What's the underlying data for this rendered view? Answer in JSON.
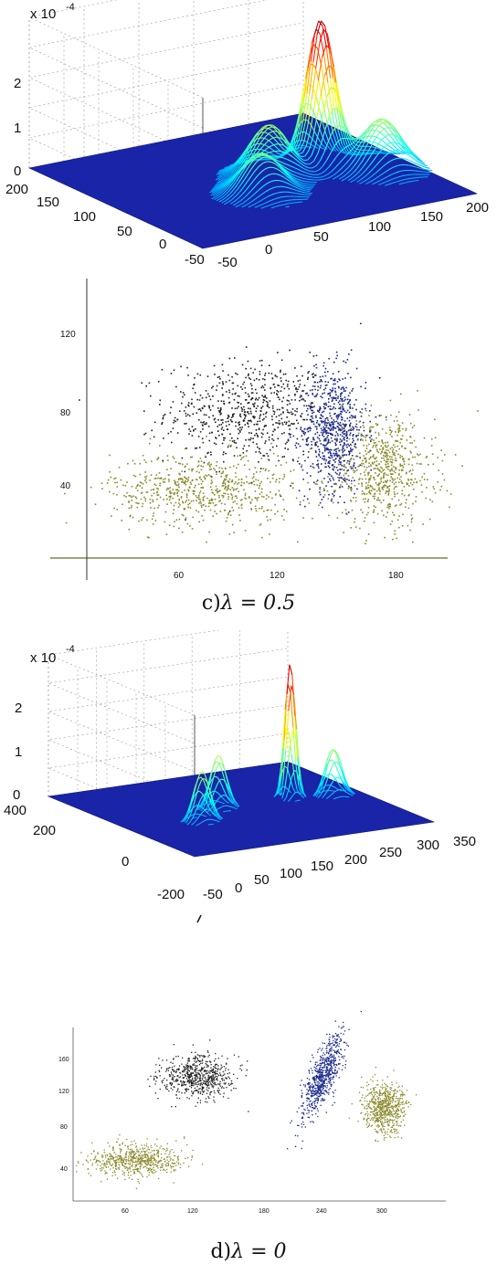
{
  "captions": {
    "c_prefix": "c)",
    "c_eq": "λ = 0.5",
    "d_prefix": "d)",
    "d_eq": "λ = 0"
  },
  "chart_data": [
    {
      "id": "surface-c",
      "type": "surface",
      "z_exponent_label": "x 10",
      "z_exponent_power": "-4",
      "z_ticks": [
        "0",
        "1",
        "2"
      ],
      "x_ticks": [
        "-50",
        "0",
        "50",
        "100",
        "150",
        "200"
      ],
      "y_ticks": [
        "-50",
        "0",
        "50",
        "100",
        "150",
        "200"
      ],
      "peaks": [
        {
          "x": 140,
          "y": 80,
          "z": 2.5
        },
        {
          "x": 90,
          "y": 75,
          "z": 0.9
        },
        {
          "x": 60,
          "y": 40,
          "z": 0.7
        },
        {
          "x": 170,
          "y": 40,
          "z": 0.9
        }
      ]
    },
    {
      "id": "scatter-c",
      "type": "scatter",
      "x_ticks": [
        "60",
        "120",
        "180"
      ],
      "y_ticks": [
        "40",
        "80",
        "120"
      ],
      "xlim": [
        -10,
        210
      ],
      "ylim": [
        0,
        150
      ],
      "clusters": [
        {
          "color": "#222222",
          "cx": 90,
          "cy": 80,
          "sx": 26,
          "sy": 14,
          "n": 700
        },
        {
          "color": "#1a2a8c",
          "cx": 140,
          "cy": 70,
          "sx": 10,
          "sy": 17,
          "n": 700
        },
        {
          "color": "#8c8a2c",
          "cx": 60,
          "cy": 38,
          "sx": 28,
          "sy": 10,
          "n": 650
        },
        {
          "color": "#8c8a2c",
          "cx": 170,
          "cy": 48,
          "sx": 16,
          "sy": 15,
          "n": 650
        }
      ]
    },
    {
      "id": "surface-d",
      "type": "surface",
      "z_exponent_label": "x 10",
      "z_exponent_power": "-4",
      "z_ticks": [
        "0",
        "1",
        "2"
      ],
      "x_ticks": [
        "-50",
        "0",
        "50",
        "100",
        "150",
        "200",
        "250",
        "300",
        "350"
      ],
      "y_ticks": [
        "-200",
        "0",
        "200",
        "400"
      ],
      "peaks": [
        {
          "x": 240,
          "y": 120,
          "z": 2.5
        },
        {
          "x": 120,
          "y": 120,
          "z": 1.0
        },
        {
          "x": 60,
          "y": 40,
          "z": 0.95
        },
        {
          "x": 300,
          "y": 90,
          "z": 0.9
        }
      ]
    },
    {
      "id": "scatter-d",
      "type": "scatter",
      "x_ticks": [
        "60",
        "120",
        "180",
        "240",
        "300"
      ],
      "y_ticks": [
        "40",
        "80",
        "120",
        "160"
      ],
      "xlim": [
        0,
        360
      ],
      "ylim": [
        0,
        180
      ],
      "clusters": [
        {
          "color": "#222222",
          "cx": 120,
          "cy": 120,
          "sx": 18,
          "sy": 10,
          "n": 650
        },
        {
          "color": "#1a2a8c",
          "cx": 240,
          "cy": 120,
          "sx": 10,
          "sy": 20,
          "n": 700,
          "rho": 0.75
        },
        {
          "color": "#8c8a2c",
          "cx": 60,
          "cy": 40,
          "sx": 22,
          "sy": 8,
          "n": 650
        },
        {
          "color": "#8c8a2c",
          "cx": 300,
          "cy": 90,
          "sx": 10,
          "sy": 12,
          "n": 650
        }
      ]
    }
  ]
}
